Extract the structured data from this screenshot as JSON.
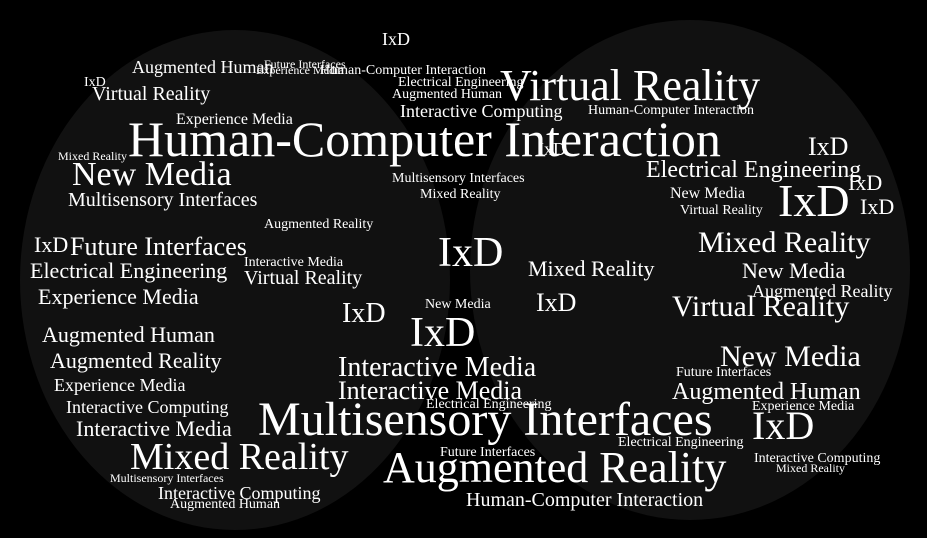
{
  "words": [
    "Human-Computer Interaction",
    "Virtual Reality",
    "Mixed Reality",
    "Augmented Reality",
    "Multisensory Interfaces",
    "Augmented Human",
    "IxD",
    "New Media",
    "Future Interfaces",
    "Electrical Engineering",
    "Experience Media",
    "Interactive Media",
    "Interactive Computing"
  ],
  "colors": {
    "background": "#000000",
    "text": "#ffffff",
    "shape": "#111111"
  }
}
